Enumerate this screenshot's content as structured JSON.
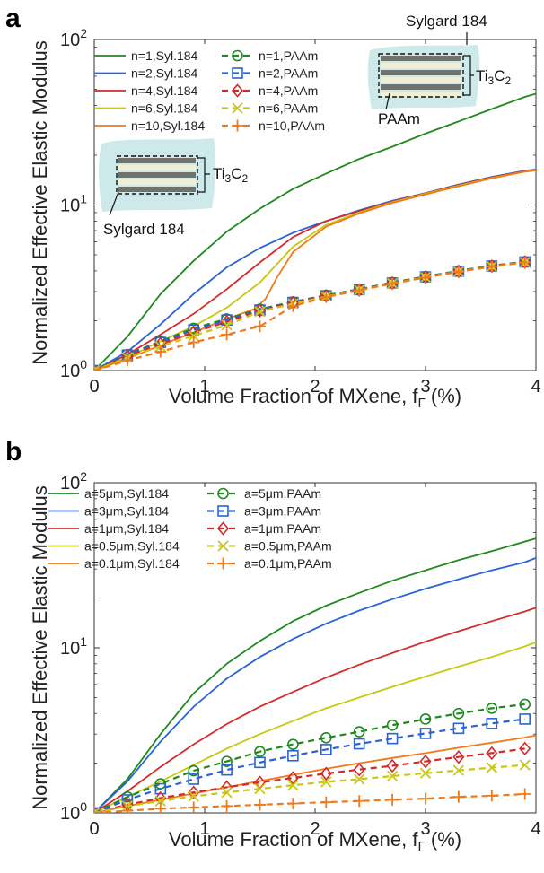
{
  "chart_data": [
    {
      "panel": "a",
      "type": "line",
      "xlabel": "Volume Fraction of MXene, f",
      "xlabel_sub": "Γ",
      "xlabel_unit": "(%)",
      "ylabel": "Normalized Effective Elastic Modulus",
      "xlim": [
        0,
        4
      ],
      "ylim": [
        1,
        100
      ],
      "yscale": "log",
      "xticks": [
        "0",
        "1",
        "2",
        "3",
        "4"
      ],
      "yticks": [
        {
          "base": "10",
          "exp": "0"
        },
        {
          "base": "10",
          "exp": "1"
        },
        {
          "base": "10",
          "exp": "2"
        }
      ],
      "grid": false,
      "legend_position": "top",
      "annotations": {
        "inset_top": {
          "top_label": "Sylgard 184",
          "side_label_base": "Ti",
          "side_label_sub1": "3",
          "side_label_mid": "C",
          "side_label_sub2": "2",
          "bottom_label": "PAAm"
        },
        "inset_left": {
          "side_label_base": "Ti",
          "side_label_sub1": "3",
          "side_label_mid": "C",
          "side_label_sub2": "2",
          "bottom_label": "Sylgard 184"
        }
      },
      "series": [
        {
          "name": "n=1,Syl.184",
          "color": "#1e8a1e",
          "style": "solid",
          "marker": "none",
          "x": [
            0,
            0.3,
            0.6,
            0.9,
            1.2,
            1.5,
            1.8,
            2.1,
            2.4,
            2.7,
            3.0,
            3.3,
            3.6,
            3.9,
            4.0
          ],
          "y": [
            1,
            1.6,
            2.9,
            4.6,
            6.9,
            9.5,
            12.5,
            15.5,
            19,
            22.5,
            27,
            32,
            38,
            45,
            47
          ]
        },
        {
          "name": "n=2,Syl.184",
          "color": "#2a63d6",
          "style": "solid",
          "marker": "none",
          "x": [
            0,
            0.3,
            0.6,
            0.9,
            1.2,
            1.5,
            1.8,
            2.1,
            2.4,
            2.7,
            3.0,
            3.3,
            3.6,
            3.9,
            4.0
          ],
          "y": [
            1,
            1.3,
            1.9,
            2.9,
            4.2,
            5.5,
            6.8,
            8.0,
            9.3,
            10.6,
            11.8,
            13.3,
            14.8,
            16.1,
            16.4
          ]
        },
        {
          "name": "n=4,Syl.184",
          "color": "#d62a2a",
          "style": "solid",
          "marker": "none",
          "x": [
            0,
            0.3,
            0.6,
            0.9,
            1.2,
            1.5,
            1.8,
            2.1,
            2.4,
            2.7,
            3.0,
            3.3,
            3.6,
            3.9,
            4.0
          ],
          "y": [
            1,
            1.25,
            1.65,
            2.2,
            3.1,
            4.5,
            6.4,
            8.0,
            9.2,
            10.5,
            11.8,
            13.2,
            14.7,
            16.0,
            16.3
          ]
        },
        {
          "name": "n=6,Syl.184",
          "color": "#c8c814",
          "style": "solid",
          "marker": "none",
          "x": [
            0,
            0.3,
            0.6,
            0.9,
            1.2,
            1.5,
            1.8,
            2.1,
            2.4,
            2.7,
            3.0,
            3.3,
            3.6,
            3.9,
            4.0
          ],
          "y": [
            1,
            1.2,
            1.5,
            1.85,
            2.4,
            3.4,
            5.6,
            7.6,
            9.0,
            10.4,
            11.7,
            13.1,
            14.6,
            15.9,
            16.2
          ]
        },
        {
          "name": "n=10,Syl.184",
          "color": "#f07a1a",
          "style": "solid",
          "marker": "none",
          "x": [
            0,
            0.3,
            0.6,
            0.9,
            1.2,
            1.45,
            1.55,
            1.65,
            1.8,
            2.1,
            2.4,
            2.7,
            3.0,
            3.3,
            3.6,
            3.9,
            4.0
          ],
          "y": [
            1,
            1.18,
            1.42,
            1.7,
            2.05,
            2.35,
            2.7,
            3.6,
            5.2,
            7.4,
            8.9,
            10.3,
            11.6,
            13.0,
            14.5,
            15.9,
            16.2
          ]
        },
        {
          "name": "n=1,PAAm",
          "color": "#1e8a1e",
          "style": "dashed",
          "marker": "circle",
          "x": [
            0,
            0.3,
            0.6,
            0.9,
            1.2,
            1.5,
            1.8,
            2.1,
            2.4,
            2.7,
            3.0,
            3.3,
            3.6,
            3.9
          ],
          "y": [
            1,
            1.25,
            1.5,
            1.8,
            2.05,
            2.35,
            2.6,
            2.85,
            3.1,
            3.4,
            3.7,
            4.0,
            4.3,
            4.55
          ]
        },
        {
          "name": "n=2,PAAm",
          "color": "#2a63d6",
          "style": "dashed",
          "marker": "square",
          "x": [
            0,
            0.3,
            0.6,
            0.9,
            1.2,
            1.5,
            1.8,
            2.1,
            2.4,
            2.7,
            3.0,
            3.3,
            3.6,
            3.9
          ],
          "y": [
            1,
            1.24,
            1.48,
            1.76,
            2.02,
            2.32,
            2.58,
            2.83,
            3.08,
            3.38,
            3.68,
            3.98,
            4.28,
            4.53
          ]
        },
        {
          "name": "n=4,PAAm",
          "color": "#d62a2a",
          "style": "dashed",
          "marker": "diamond",
          "x": [
            0,
            0.3,
            0.6,
            0.9,
            1.2,
            1.5,
            1.8,
            2.1,
            2.4,
            2.7,
            3.0,
            3.3,
            3.6,
            3.9
          ],
          "y": [
            1,
            1.22,
            1.45,
            1.7,
            1.97,
            2.3,
            2.56,
            2.82,
            3.07,
            3.37,
            3.67,
            3.97,
            4.27,
            4.52
          ]
        },
        {
          "name": "n=6,PAAm",
          "color": "#c8c814",
          "style": "dashed",
          "marker": "x",
          "x": [
            0,
            0.3,
            0.6,
            0.9,
            1.2,
            1.5,
            1.8,
            2.1,
            2.4,
            2.7,
            3.0,
            3.3,
            3.6,
            3.9
          ],
          "y": [
            1,
            1.2,
            1.4,
            1.62,
            1.88,
            2.27,
            2.53,
            2.8,
            3.06,
            3.36,
            3.66,
            3.96,
            4.26,
            4.51
          ]
        },
        {
          "name": "n=10,PAAm",
          "color": "#f07a1a",
          "style": "dashed",
          "marker": "plus",
          "x": [
            0,
            0.3,
            0.6,
            0.9,
            1.2,
            1.5,
            1.8,
            2.1,
            2.4,
            2.7,
            3.0,
            3.3,
            3.6,
            3.9
          ],
          "y": [
            1,
            1.15,
            1.3,
            1.48,
            1.65,
            1.85,
            2.45,
            2.78,
            3.05,
            3.35,
            3.65,
            3.95,
            4.25,
            4.5
          ]
        }
      ]
    },
    {
      "panel": "b",
      "type": "line",
      "xlabel": "Volume Fraction of MXene, f",
      "xlabel_sub": "Γ",
      "xlabel_unit": "(%)",
      "ylabel": "Normalized Effective Elastic Modulus",
      "xlim": [
        0,
        4
      ],
      "ylim": [
        1,
        100
      ],
      "yscale": "log",
      "xticks": [
        "0",
        "1",
        "2",
        "3",
        "4"
      ],
      "yticks": [
        {
          "base": "10",
          "exp": "0"
        },
        {
          "base": "10",
          "exp": "1"
        },
        {
          "base": "10",
          "exp": "2"
        }
      ],
      "grid": false,
      "legend_position": "top",
      "series": [
        {
          "name": "a=5μm,Syl.184",
          "color": "#1e8a1e",
          "style": "solid",
          "marker": "none",
          "x": [
            0,
            0.3,
            0.6,
            0.9,
            1.2,
            1.5,
            1.8,
            2.1,
            2.4,
            2.7,
            3.0,
            3.3,
            3.6,
            3.9,
            4.0
          ],
          "y": [
            1,
            1.6,
            3.0,
            5.3,
            8.0,
            11.0,
            14.5,
            18.0,
            21.5,
            25.5,
            29.5,
            34,
            38.5,
            44,
            46
          ]
        },
        {
          "name": "a=3μm,Syl.184",
          "color": "#2a63d6",
          "style": "solid",
          "marker": "none",
          "x": [
            0,
            0.3,
            0.6,
            0.9,
            1.2,
            1.5,
            1.8,
            2.1,
            2.4,
            2.7,
            3.0,
            3.3,
            3.6,
            3.9,
            4.0
          ],
          "y": [
            1,
            1.55,
            2.7,
            4.4,
            6.5,
            8.8,
            11.3,
            14.0,
            16.8,
            19.7,
            22.8,
            26,
            29.5,
            33,
            35
          ]
        },
        {
          "name": "a=1μm,Syl.184",
          "color": "#d62a2a",
          "style": "solid",
          "marker": "none",
          "x": [
            0,
            0.3,
            0.6,
            0.9,
            1.2,
            1.5,
            1.8,
            2.1,
            2.4,
            2.7,
            3.0,
            3.3,
            3.6,
            3.9,
            4.0
          ],
          "y": [
            1,
            1.35,
            1.9,
            2.6,
            3.45,
            4.4,
            5.4,
            6.6,
            7.9,
            9.3,
            10.9,
            12.6,
            14.5,
            16.6,
            17.5
          ]
        },
        {
          "name": "a=0.5μm,Syl.184",
          "color": "#c8c814",
          "style": "solid",
          "marker": "none",
          "x": [
            0,
            0.3,
            0.6,
            0.9,
            1.2,
            1.5,
            1.8,
            2.1,
            2.4,
            2.7,
            3.0,
            3.3,
            3.6,
            3.9,
            4.0
          ],
          "y": [
            1,
            1.25,
            1.55,
            1.95,
            2.45,
            3.0,
            3.6,
            4.3,
            5.0,
            5.8,
            6.7,
            7.7,
            8.8,
            10.2,
            10.8
          ]
        },
        {
          "name": "a=0.1μm,Syl.184",
          "color": "#f07a1a",
          "style": "solid",
          "marker": "none",
          "x": [
            0,
            0.3,
            0.6,
            0.9,
            1.2,
            1.5,
            1.8,
            2.1,
            2.4,
            2.7,
            3.0,
            3.3,
            3.6,
            3.9,
            4.0
          ],
          "y": [
            1,
            1.1,
            1.2,
            1.31,
            1.43,
            1.56,
            1.7,
            1.85,
            2.0,
            2.15,
            2.3,
            2.48,
            2.66,
            2.86,
            2.95
          ]
        },
        {
          "name": "a=5μm,PAAm",
          "color": "#1e8a1e",
          "style": "dashed",
          "marker": "circle",
          "x": [
            0,
            0.3,
            0.6,
            0.9,
            1.2,
            1.5,
            1.8,
            2.1,
            2.4,
            2.7,
            3.0,
            3.3,
            3.6,
            3.9
          ],
          "y": [
            1,
            1.25,
            1.5,
            1.8,
            2.05,
            2.35,
            2.6,
            2.85,
            3.1,
            3.4,
            3.7,
            4.0,
            4.3,
            4.55
          ]
        },
        {
          "name": "a=3μm,PAAm",
          "color": "#2a63d6",
          "style": "dashed",
          "marker": "square",
          "x": [
            0,
            0.3,
            0.6,
            0.9,
            1.2,
            1.5,
            1.8,
            2.1,
            2.4,
            2.7,
            3.0,
            3.3,
            3.6,
            3.9
          ],
          "y": [
            1,
            1.2,
            1.4,
            1.6,
            1.82,
            2.02,
            2.22,
            2.42,
            2.62,
            2.82,
            3.03,
            3.25,
            3.48,
            3.7
          ]
        },
        {
          "name": "a=1μm,PAAm",
          "color": "#d62a2a",
          "style": "dashed",
          "marker": "diamond",
          "x": [
            0,
            0.3,
            0.6,
            0.9,
            1.2,
            1.5,
            1.8,
            2.1,
            2.4,
            2.7,
            3.0,
            3.3,
            3.6,
            3.9
          ],
          "y": [
            1,
            1.12,
            1.23,
            1.33,
            1.43,
            1.53,
            1.63,
            1.73,
            1.83,
            1.93,
            2.05,
            2.18,
            2.3,
            2.45
          ]
        },
        {
          "name": "a=0.5μm,PAAm",
          "color": "#c8c814",
          "style": "dashed",
          "marker": "x",
          "x": [
            0,
            0.3,
            0.6,
            0.9,
            1.2,
            1.5,
            1.8,
            2.1,
            2.4,
            2.7,
            3.0,
            3.3,
            3.6,
            3.9
          ],
          "y": [
            1,
            1.1,
            1.18,
            1.26,
            1.33,
            1.4,
            1.47,
            1.54,
            1.6,
            1.67,
            1.74,
            1.81,
            1.88,
            1.95
          ]
        },
        {
          "name": "a=0.1μm,PAAm",
          "color": "#f07a1a",
          "style": "dashed",
          "marker": "plus",
          "x": [
            0,
            0.3,
            0.6,
            0.9,
            1.2,
            1.5,
            1.8,
            2.1,
            2.4,
            2.7,
            3.0,
            3.3,
            3.6,
            3.9
          ],
          "y": [
            1,
            1.03,
            1.06,
            1.08,
            1.1,
            1.12,
            1.14,
            1.16,
            1.18,
            1.2,
            1.22,
            1.25,
            1.27,
            1.3
          ]
        }
      ]
    }
  ]
}
